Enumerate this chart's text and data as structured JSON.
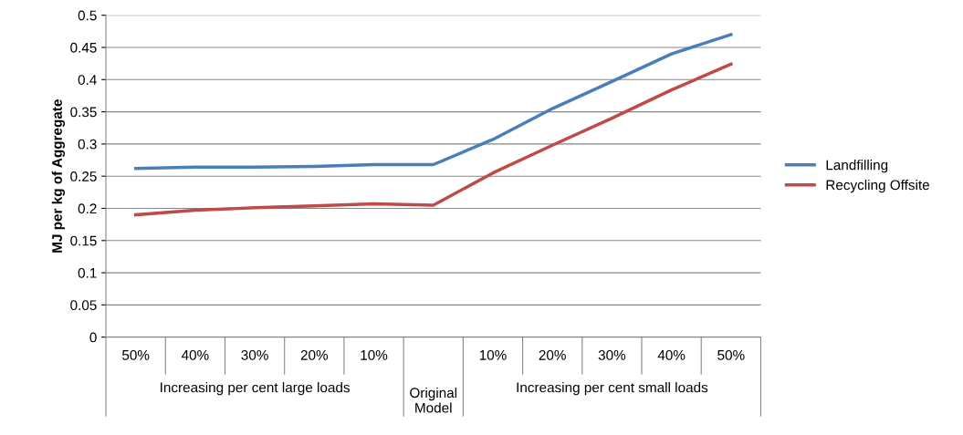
{
  "chart_data": {
    "type": "line",
    "ylabel": "MJ per kg of Aggregate",
    "categories": [
      "50%",
      "40%",
      "30%",
      "20%",
      "10%",
      null,
      "10%",
      "20%",
      "30%",
      "40%",
      "50%"
    ],
    "series": [
      {
        "name": "Landfilling",
        "color": "#4a7ebb",
        "values": [
          0.262,
          0.264,
          0.264,
          0.265,
          0.268,
          0.268,
          0.307,
          0.355,
          0.397,
          0.44,
          0.47
        ]
      },
      {
        "name": "Recycling Offsite",
        "color": "#be4b48",
        "values": [
          0.19,
          0.197,
          0.201,
          0.204,
          0.207,
          0.205,
          0.255,
          0.298,
          0.34,
          0.384,
          0.424
        ]
      }
    ],
    "annotations": [
      "Increasing per cent large loads",
      "Original\nModel",
      "Increasing per cent small loads"
    ],
    "ylim": [
      0,
      0.5
    ],
    "yticks": [
      0,
      0.05,
      0.1,
      0.15,
      0.2,
      0.25,
      0.3,
      0.35,
      0.4,
      0.45,
      0.5
    ],
    "grid": "y",
    "legend": "right",
    "marker": "none",
    "line_style": "solid"
  }
}
